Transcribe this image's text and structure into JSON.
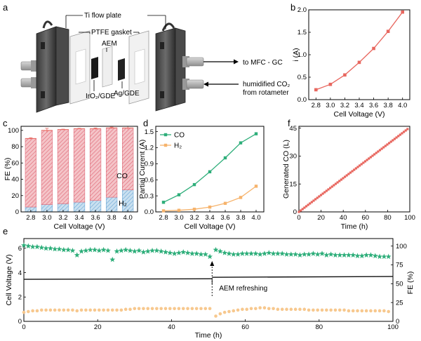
{
  "colors": {
    "red": "#e8675f",
    "pink_fill": "#f4c4c8",
    "pink_hatch": "#e06a78",
    "blue_fill": "#c9e0f0",
    "blue_hatch": "#6fa9d6",
    "green": "#2eae7a",
    "orange": "#f6b36c",
    "peach": "#f7c88e",
    "black": "#111111"
  },
  "panel_labels": {
    "a": "a",
    "b": "b",
    "c": "c",
    "d": "d",
    "e": "e",
    "f": "f"
  },
  "schematic": {
    "labels": {
      "ti": "Ti flow plate",
      "ptfe": "PTFE gasket",
      "aem": "AEM",
      "ag": "Ag/GDE",
      "iro": "IrO₂/GDE",
      "mfc": "to MFC - GC",
      "hum1": "humidified CO₂",
      "hum2": "from rotameter"
    }
  },
  "chart_data": [
    {
      "panel": "b",
      "type": "line",
      "x": [
        2.8,
        3.0,
        3.2,
        3.4,
        3.6,
        3.8,
        4.0
      ],
      "series": [
        {
          "values": [
            0.22,
            0.34,
            0.55,
            0.83,
            1.14,
            1.52,
            1.95
          ]
        }
      ],
      "xlabel": "Cell Voltage (V)",
      "ylabel": "i (A)",
      "xlim": [
        2.7,
        4.1
      ],
      "ylim": [
        0,
        2.0
      ],
      "xticks": [
        "2.8",
        "3.0",
        "3.2",
        "3.4",
        "3.6",
        "3.8",
        "4.0"
      ],
      "yticks": [
        "0.0",
        "0.5",
        "1.0",
        "1.5",
        "2.0"
      ]
    },
    {
      "panel": "c",
      "type": "bar",
      "categories": [
        "2.8",
        "3.0",
        "3.2",
        "3.4",
        "3.6",
        "3.8",
        "4.0"
      ],
      "series": [
        {
          "name": "H₂",
          "values": [
            6,
            9,
            10,
            12,
            14,
            18,
            27
          ]
        },
        {
          "name": "CO",
          "values": [
            84,
            91,
            91,
            90,
            88,
            85,
            76
          ]
        }
      ],
      "totals": [
        90,
        100,
        101,
        102,
        102,
        103,
        103
      ],
      "errors": [
        1.0,
        2.5,
        0.5,
        0.5,
        1.0,
        1.0,
        2.0
      ],
      "xlabel": "Cell Voltage (V)",
      "ylabel": "FE (%)",
      "ylim": [
        0,
        105
      ],
      "yticks": [
        "0",
        "20",
        "40",
        "60",
        "80",
        "100"
      ]
    },
    {
      "panel": "d",
      "type": "line",
      "x": [
        2.8,
        3.0,
        3.2,
        3.4,
        3.6,
        3.8,
        4.0
      ],
      "series": [
        {
          "name": "CO",
          "values": [
            0.18,
            0.32,
            0.51,
            0.75,
            1.01,
            1.29,
            1.46
          ]
        },
        {
          "name": "H₂",
          "values": [
            0.02,
            0.03,
            0.05,
            0.09,
            0.16,
            0.27,
            0.48
          ]
        }
      ],
      "xlabel": "Cell Voltage (V)",
      "ylabel": "Partial Current (A)",
      "xlim": [
        2.7,
        4.1
      ],
      "ylim": [
        0,
        1.6
      ],
      "xticks": [
        "2.8",
        "3.0",
        "3.2",
        "3.4",
        "3.6",
        "3.8",
        "4.0"
      ],
      "yticks": [
        "0.0",
        "0.3",
        "0.6",
        "0.9",
        "1.2",
        "1.5"
      ],
      "legend": "top-left"
    },
    {
      "panel": "f",
      "type": "line",
      "x_start": 0,
      "x_end": 98,
      "y_start": 0,
      "y_end": 44.5,
      "points": 60,
      "xlabel": "Time (h)",
      "ylabel": "Generated CO (L)",
      "xlim": [
        0,
        100
      ],
      "ylim": [
        0,
        46
      ],
      "xticks": [
        "0",
        "20",
        "40",
        "60",
        "80",
        "100"
      ],
      "yticks": [
        "0",
        "15",
        "30",
        "45"
      ]
    },
    {
      "panel": "e",
      "type": "line",
      "xlabel": "Time (h)",
      "ylabel_left": "Cell Voltage (V)",
      "ylabel_right": "FE (%)",
      "xlim": [
        0,
        100
      ],
      "ylim_left": [
        0,
        6.8
      ],
      "ylim_right": [
        0,
        110
      ],
      "xticks": [
        "0",
        "20",
        "40",
        "60",
        "80",
        "100"
      ],
      "yticks_left": [
        "0",
        "2",
        "4",
        "6"
      ],
      "yticks_right": [
        "0",
        "25",
        "50",
        "75",
        "100"
      ],
      "annotation": "AEM refreshing",
      "annotation_x": 51,
      "voltage": {
        "segments": [
          {
            "x": [
              0,
              51
            ],
            "y": [
              3.45,
              3.5
            ]
          },
          {
            "x": [
              51,
              100
            ],
            "y": [
              3.62,
              3.68
            ]
          }
        ]
      },
      "fe_co": {
        "x": [
          0,
          1.2,
          2.4,
          3.6,
          4.8,
          6,
          7.2,
          8.4,
          9.6,
          10.8,
          12,
          13.2,
          14.4,
          15.6,
          16.8,
          18,
          19.2,
          20.4,
          21.6,
          22.8,
          24,
          25.2,
          26.4,
          27.6,
          28.8,
          30,
          31.2,
          32.4,
          33.6,
          34.8,
          36,
          37.2,
          38.4,
          39.6,
          40.8,
          42,
          43.2,
          44.4,
          45.6,
          46.8,
          48,
          49.2,
          50.4,
          52,
          53.2,
          54.4,
          55.6,
          56.8,
          58,
          59.2,
          60.4,
          61.6,
          62.8,
          64,
          65.2,
          66.4,
          67.6,
          68.8,
          70,
          71.2,
          72.4,
          73.6,
          74.8,
          76,
          77.2,
          78.4,
          79.6,
          80.8,
          82,
          83.2,
          84.4,
          85.6,
          86.8,
          88,
          89.2,
          90.4,
          91.6,
          92.8,
          94,
          95.2,
          96.4,
          97.6,
          98.8
        ],
        "y": [
          101,
          100,
          99,
          99,
          98,
          97,
          97,
          96,
          96,
          95,
          95,
          94,
          88,
          93,
          94,
          95,
          95,
          94,
          95,
          94,
          82,
          93,
          94,
          95,
          94,
          93,
          94,
          92,
          93,
          94,
          94,
          93,
          92,
          91,
          90,
          91,
          92,
          91,
          90,
          90,
          89,
          89,
          86,
          95,
          93,
          91,
          90,
          89,
          89,
          90,
          90,
          90,
          90,
          89,
          90,
          91,
          90,
          90,
          90,
          89,
          89,
          89,
          88,
          89,
          89,
          90,
          89,
          90,
          88,
          89,
          88,
          88,
          88,
          88,
          88,
          87,
          87,
          88,
          88,
          87,
          86,
          86,
          86
        ]
      },
      "fe_h2": {
        "x": [
          0,
          1.2,
          2.4,
          3.6,
          4.8,
          6,
          7.2,
          8.4,
          9.6,
          10.8,
          12,
          13.2,
          14.4,
          15.6,
          16.8,
          18,
          19.2,
          20.4,
          21.6,
          22.8,
          24,
          25.2,
          26.4,
          27.6,
          28.8,
          30,
          31.2,
          32.4,
          33.6,
          34.8,
          36,
          37.2,
          38.4,
          39.6,
          40.8,
          42,
          43.2,
          44.4,
          45.6,
          46.8,
          48,
          49.2,
          50.4,
          52,
          53.2,
          54.4,
          55.6,
          56.8,
          58,
          59.2,
          60.4,
          61.6,
          62.8,
          64,
          65.2,
          66.4,
          67.6,
          68.8,
          70,
          71.2,
          72.4,
          73.6,
          74.8,
          76,
          77.2,
          78.4,
          79.6,
          80.8,
          82,
          83.2,
          84.4,
          85.6,
          86.8,
          88,
          89.2,
          90.4,
          91.6,
          92.8,
          94,
          95.2,
          96.4,
          97.6,
          98.8
        ],
        "y": [
          12,
          13,
          14,
          14,
          15,
          15,
          15,
          15,
          15,
          15,
          15,
          15,
          14,
          15,
          15,
          15,
          15,
          15,
          15,
          15,
          15,
          15,
          15,
          16,
          16,
          17,
          17,
          17,
          17,
          17,
          17,
          17,
          17,
          17,
          17,
          17,
          17,
          17,
          17,
          17,
          17,
          17,
          17,
          7,
          10,
          12,
          13,
          14,
          15,
          16,
          16,
          17,
          17,
          18,
          18,
          17,
          17,
          16,
          16,
          16,
          16,
          16,
          16,
          16,
          15,
          15,
          15,
          15,
          15,
          15,
          15,
          15,
          15,
          14,
          14,
          14,
          14,
          14,
          14,
          14,
          14,
          14,
          13
        ]
      }
    }
  ]
}
